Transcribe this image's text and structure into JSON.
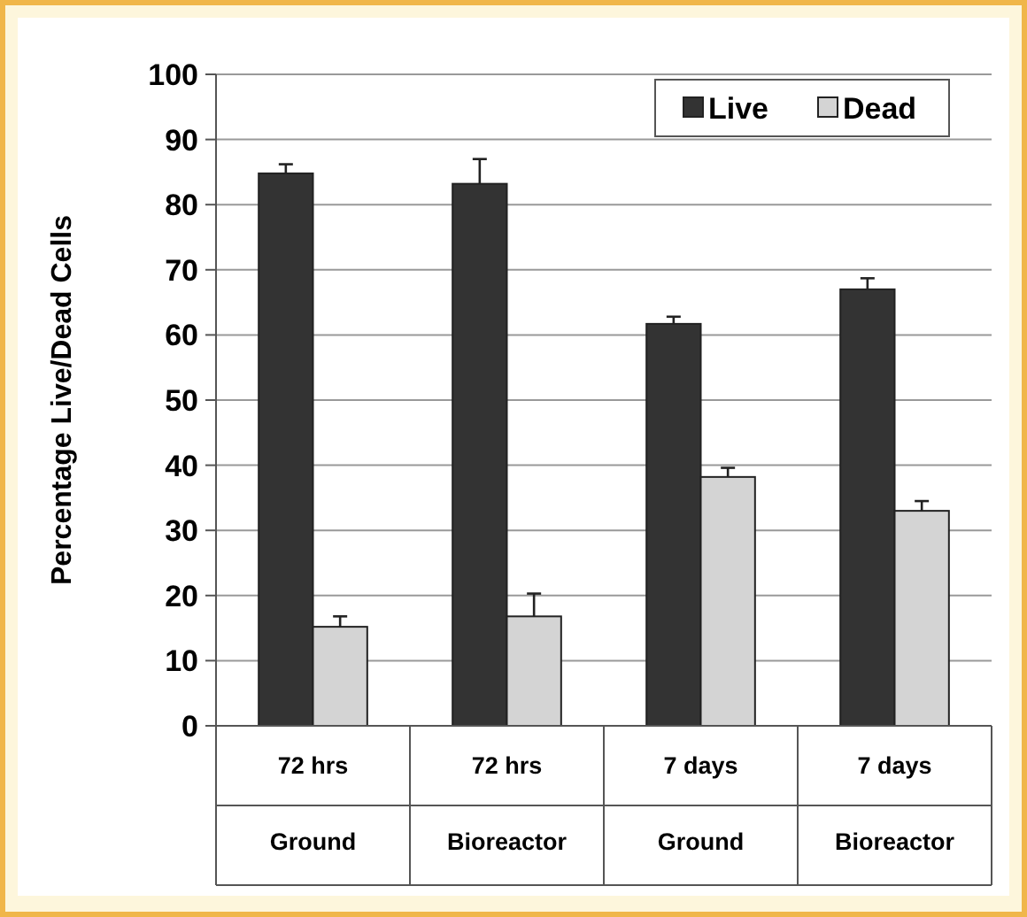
{
  "chart_data": {
    "type": "bar",
    "ylabel": "Percentage Live/Dead Cells",
    "categories": [
      "72 hrs\nGround",
      "72 hrs\nBioreactor",
      "7 days\nGround",
      "7 days\nBioreactor"
    ],
    "series": [
      {
        "name": "Live",
        "color": "#333333",
        "values": [
          84.8,
          83.2,
          61.7,
          67
        ],
        "errors": [
          1.4,
          3.8,
          1.1,
          1.7
        ]
      },
      {
        "name": "Dead",
        "color": "#d4d4d4",
        "values": [
          15.2,
          16.8,
          38.2,
          33
        ],
        "errors": [
          1.6,
          3.5,
          1.4,
          1.5
        ]
      }
    ],
    "ylim": [
      0,
      100
    ],
    "yticks": [
      0,
      10,
      20,
      30,
      40,
      50,
      60,
      70,
      80,
      90,
      100
    ],
    "grid": "y",
    "legend": "top right"
  }
}
